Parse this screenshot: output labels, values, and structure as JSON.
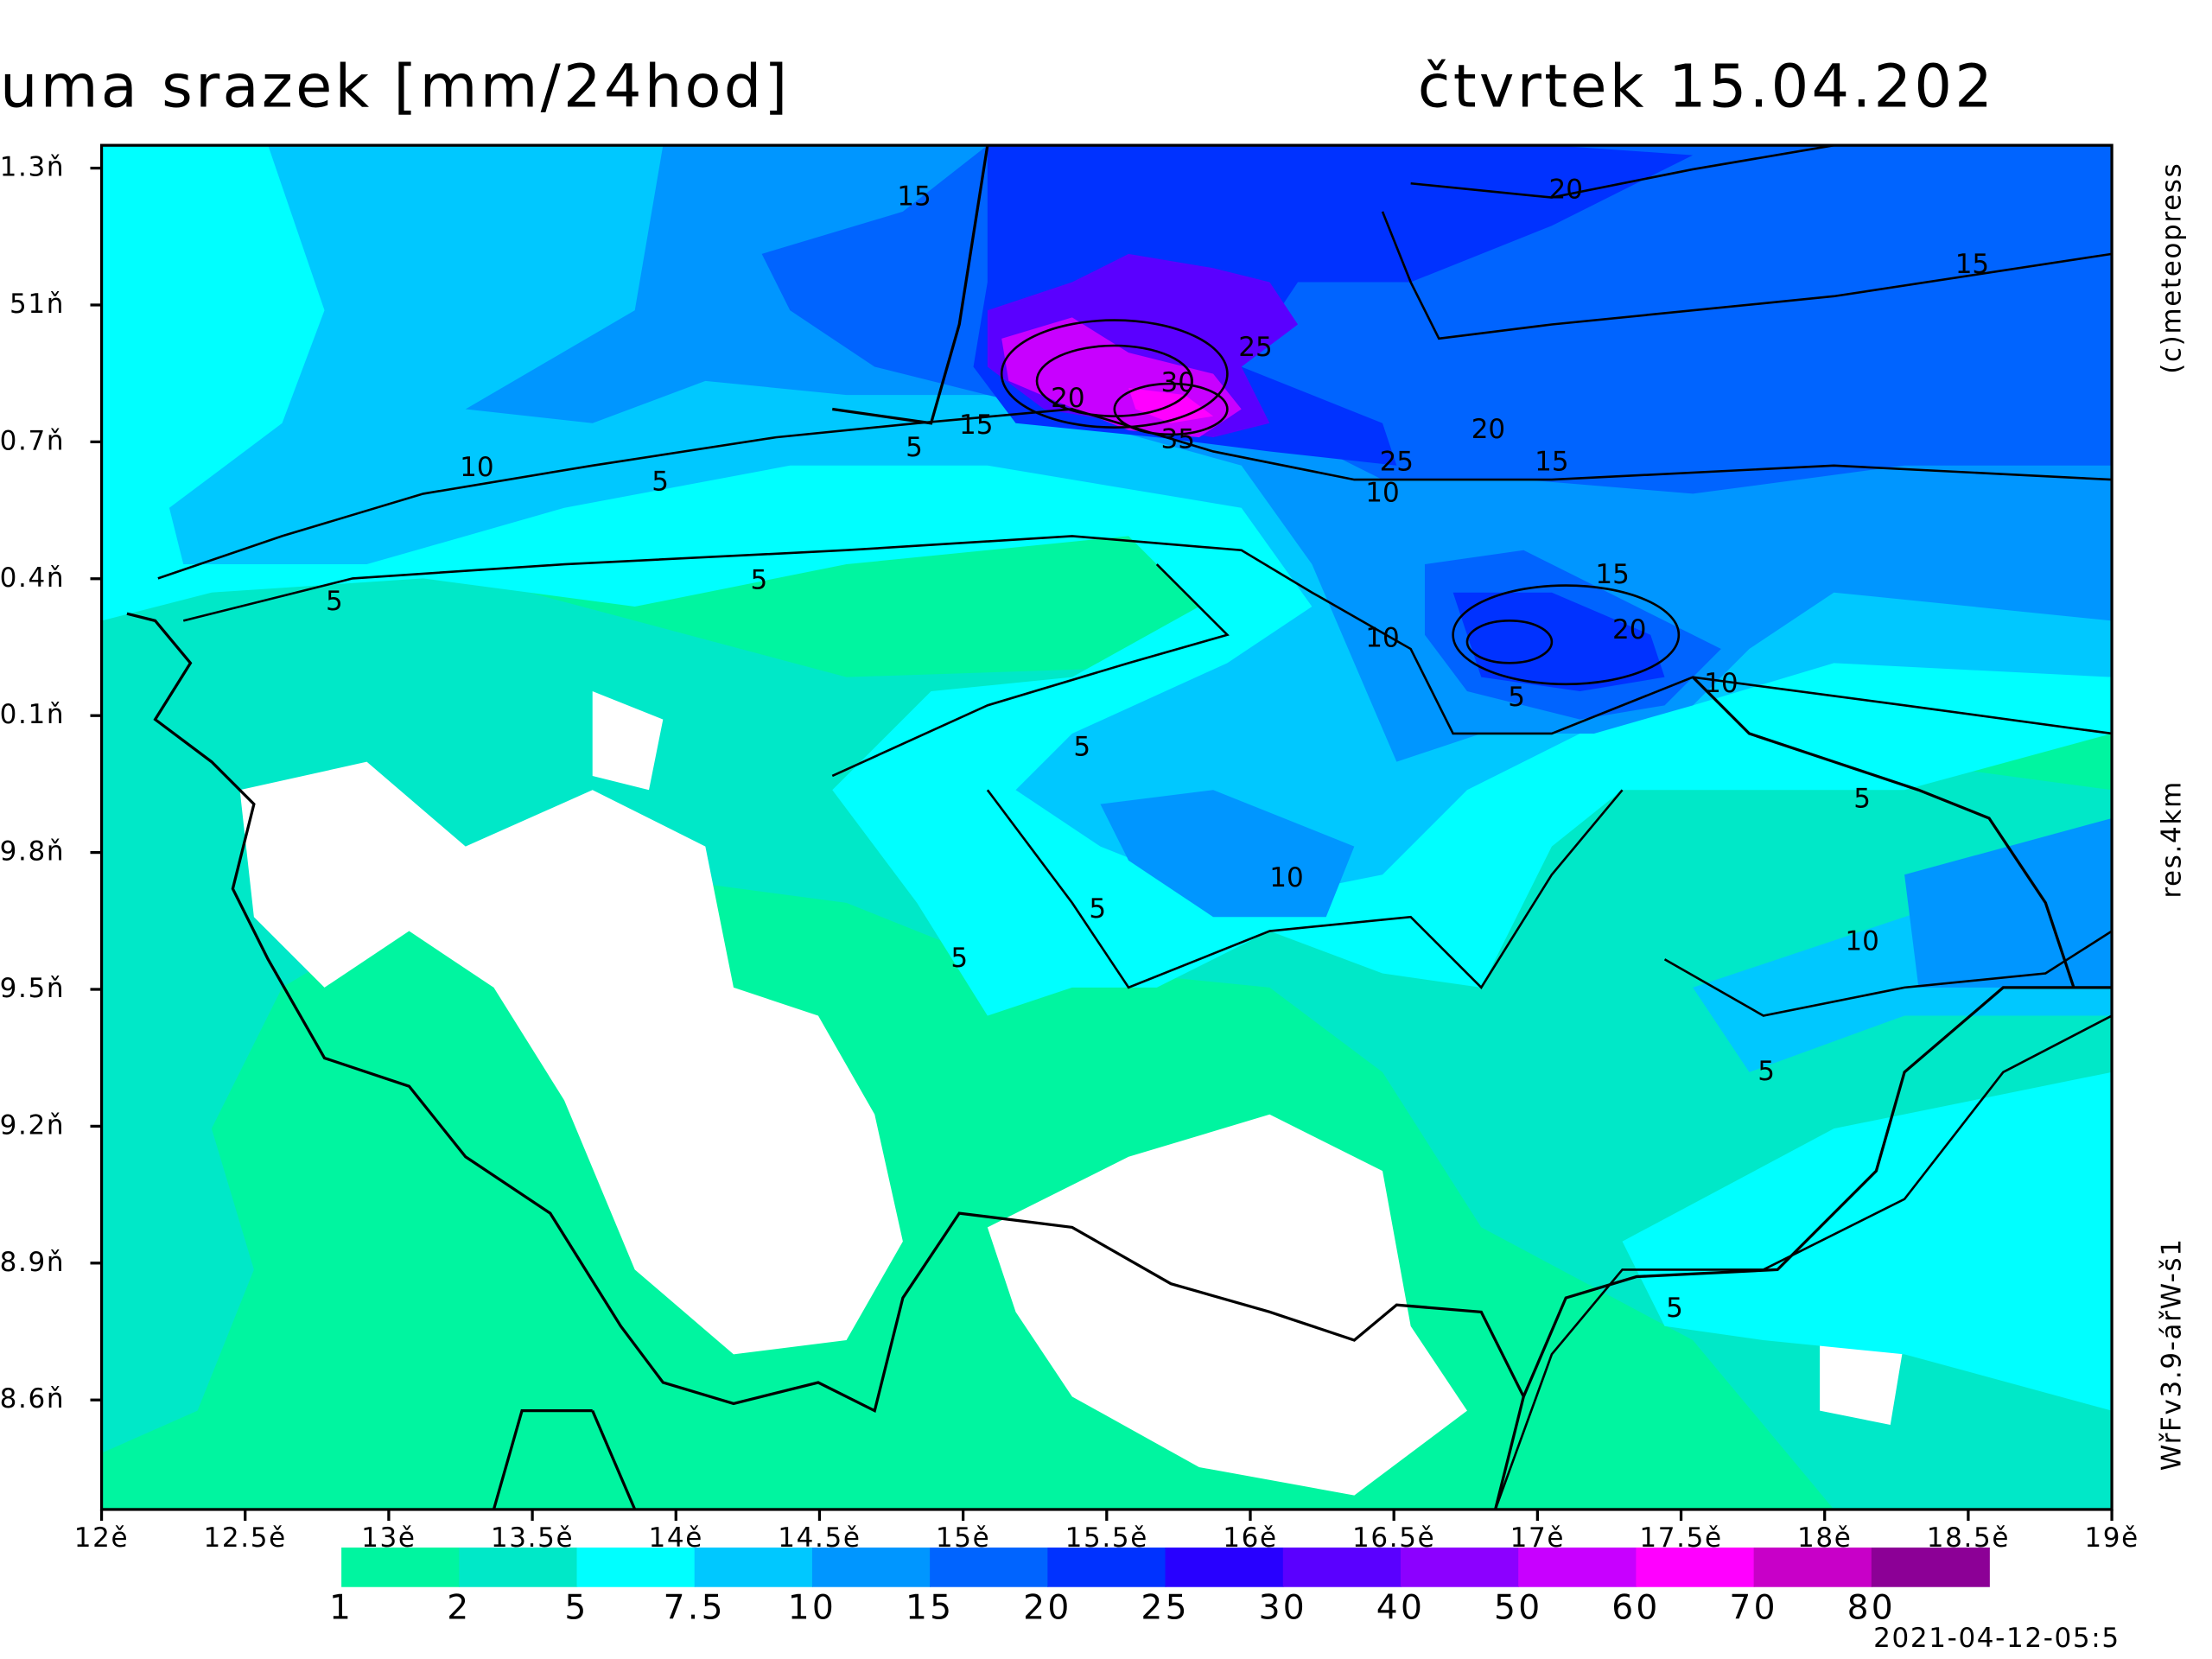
{
  "title": "uma srazek [mm/24hod]",
  "date": "čtvrtek 15.04.202",
  "credit": "(c)meteopress",
  "resolution": "res.4km",
  "model": "WřFv3.9-ářW-š1",
  "run_time": "2021-04-12-05:5",
  "map": {
    "xlim": [
      12,
      19
    ],
    "ylim": [
      48.36,
      51.35
    ],
    "xticks": [
      {
        "value": 12,
        "label": "12ě"
      },
      {
        "value": 12.5,
        "label": "12.5ě"
      },
      {
        "value": 13,
        "label": "13ě"
      },
      {
        "value": 13.5,
        "label": "13.5ě"
      },
      {
        "value": 14,
        "label": "14ě"
      },
      {
        "value": 14.5,
        "label": "14.5ě"
      },
      {
        "value": 15,
        "label": "15ě"
      },
      {
        "value": 15.5,
        "label": "15.5ě"
      },
      {
        "value": 16,
        "label": "16ě"
      },
      {
        "value": 16.5,
        "label": "16.5ě"
      },
      {
        "value": 17,
        "label": "17ě"
      },
      {
        "value": 17.5,
        "label": "17.5ě"
      },
      {
        "value": 18,
        "label": "18ě"
      },
      {
        "value": 18.5,
        "label": "18.5ě"
      },
      {
        "value": 19,
        "label": "19ě"
      }
    ],
    "yticks": [
      {
        "value": 51.3,
        "label": "1.3ň"
      },
      {
        "value": 51,
        "label": "51ň"
      },
      {
        "value": 50.7,
        "label": "0.7ň"
      },
      {
        "value": 50.4,
        "label": "0.4ň"
      },
      {
        "value": 50.1,
        "label": "0.1ň"
      },
      {
        "value": 49.8,
        "label": "9.8ň"
      },
      {
        "value": 49.5,
        "label": "9.5ň"
      },
      {
        "value": 49.2,
        "label": "9.2ň"
      },
      {
        "value": 48.9,
        "label": "8.9ň"
      },
      {
        "value": 48.6,
        "label": "8.6ň"
      }
    ],
    "contour_labels": [
      "15",
      "20",
      "15",
      "25",
      "30",
      "20",
      "15",
      "35",
      "5",
      "10",
      "5",
      "20",
      "15",
      "25",
      "10",
      "5",
      "5",
      "15",
      "10",
      "20",
      "5",
      "10",
      "5",
      "5",
      "10",
      "5",
      "5",
      "10",
      "5",
      "5"
    ]
  },
  "colorbar": {
    "levels": [
      1,
      2,
      5,
      7.5,
      10,
      15,
      20,
      25,
      30,
      40,
      50,
      60,
      70,
      80
    ],
    "colors": [
      "#00f5a0",
      "#00e8c8",
      "#00ffff",
      "#00c8ff",
      "#0096ff",
      "#0064ff",
      "#0032ff",
      "#2800ff",
      "#5a00ff",
      "#8c00ff",
      "#c800ff",
      "#ff00ff",
      "#c800c8",
      "#8c0096"
    ]
  }
}
